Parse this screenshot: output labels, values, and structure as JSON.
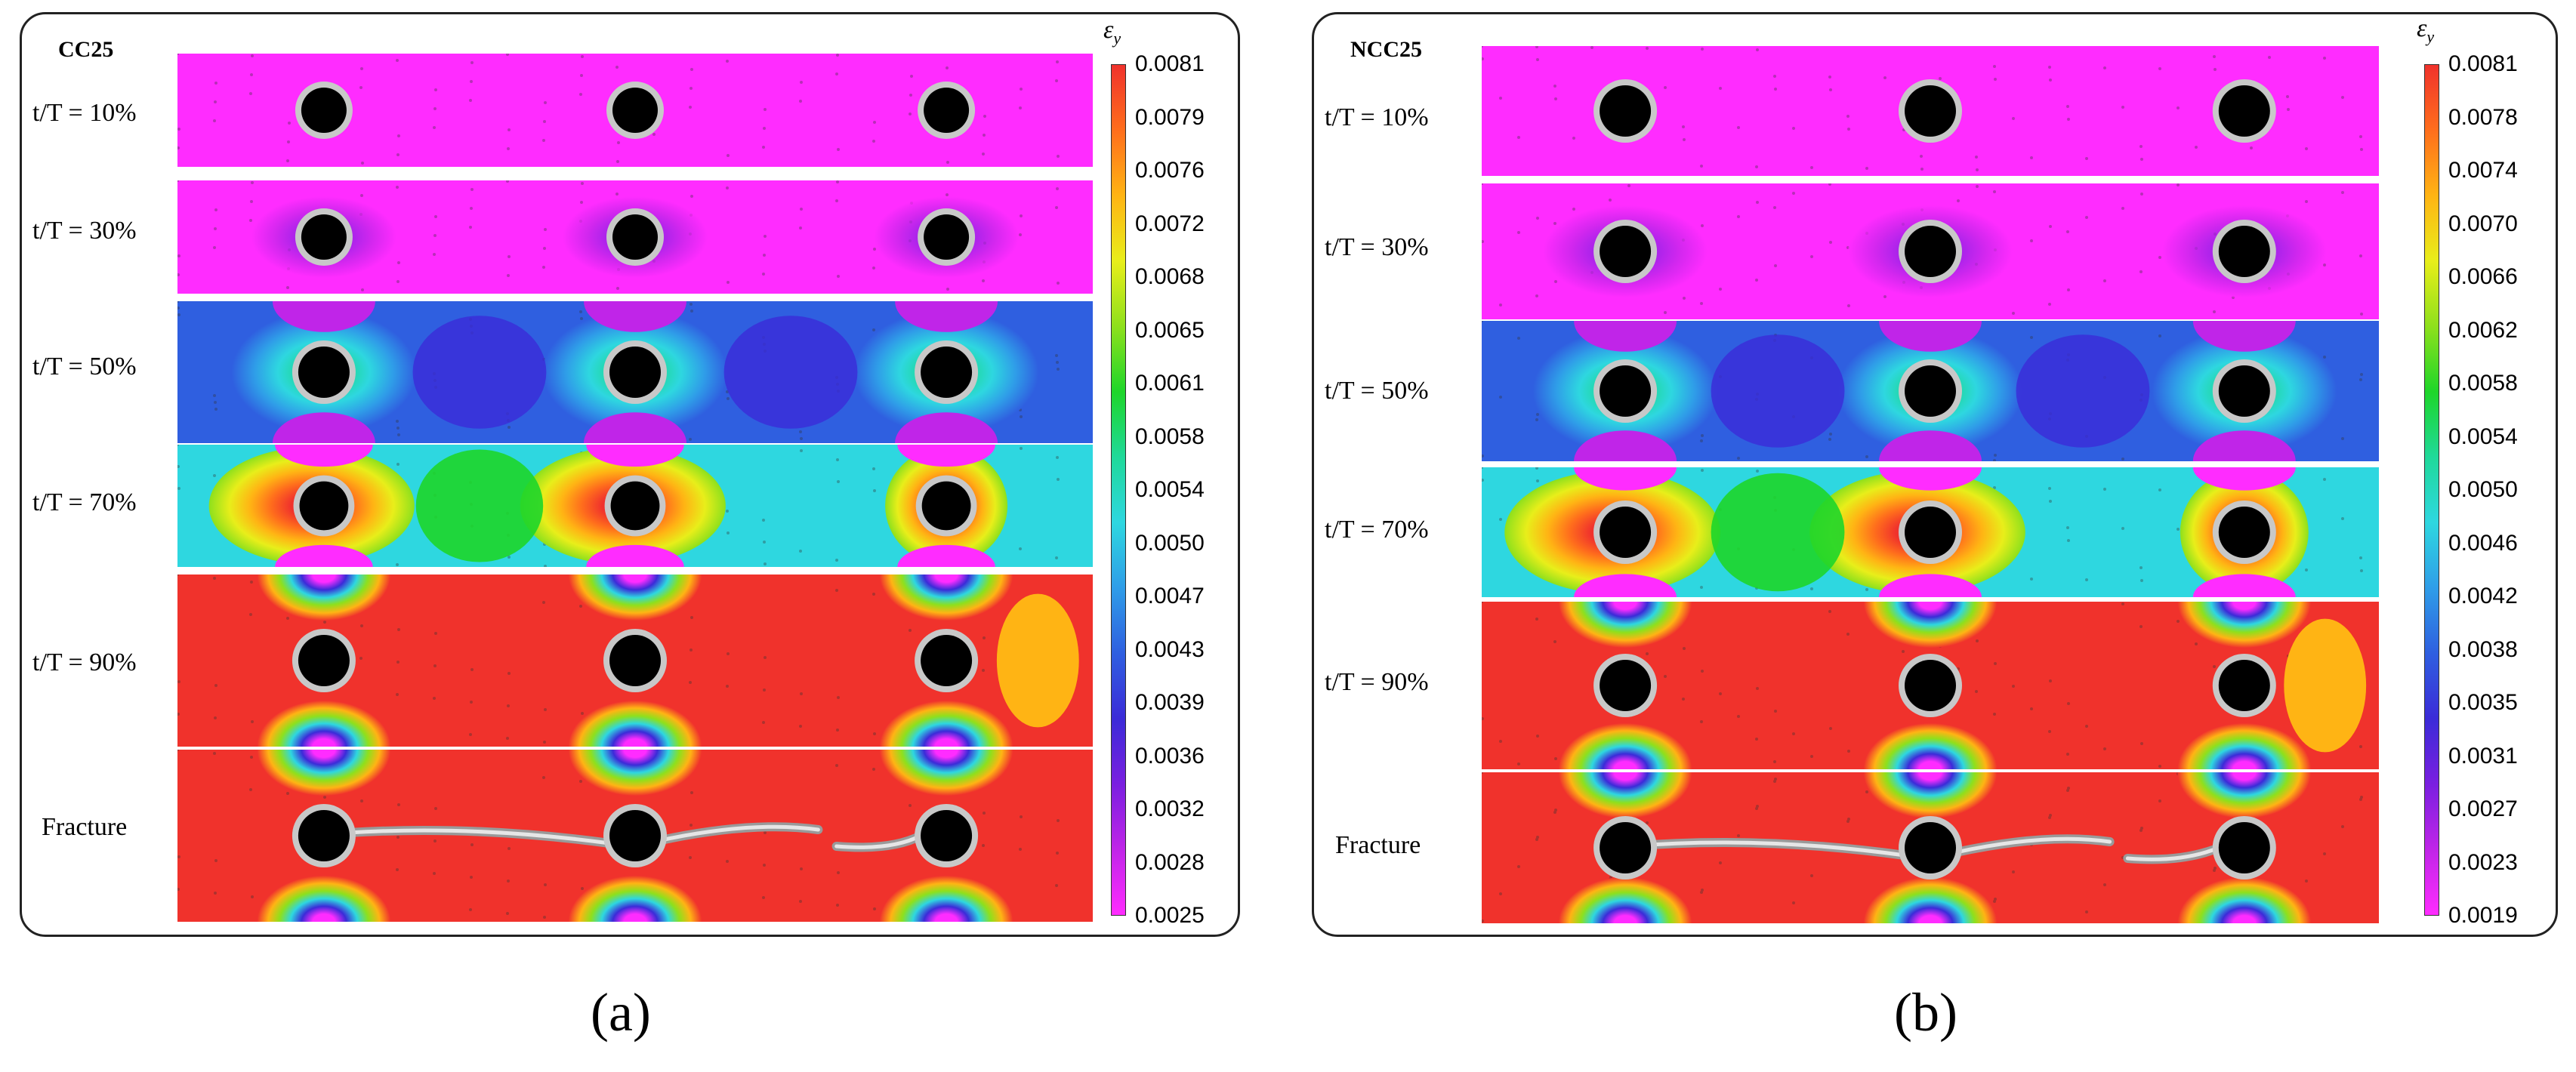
{
  "colors": {
    "scale": [
      "#ff2cff",
      "#c025e8",
      "#7a1fe0",
      "#3b2bd8",
      "#2f5fe0",
      "#2f9de8",
      "#2ed7e0",
      "#1fd99a",
      "#1ed62a",
      "#8ee01c",
      "#e8ee1a",
      "#ffb414",
      "#ff6e1c",
      "#f0322c"
    ],
    "hole": "#000000",
    "speckle": "#c8c8c8"
  },
  "panels": [
    {
      "id": "a",
      "title": "CC25",
      "caption": "(a)",
      "colorbar_title": "ε",
      "colorbar_sub": "y",
      "colorbar_ticks": [
        "0.0081",
        "0.0079",
        "0.0076",
        "0.0072",
        "0.0068",
        "0.0065",
        "0.0061",
        "0.0058",
        "0.0054",
        "0.0050",
        "0.0047",
        "0.0043",
        "0.0039",
        "0.0036",
        "0.0032",
        "0.0028",
        "0.0025"
      ],
      "rows": [
        {
          "label": "t/T = 10%",
          "stage": "10"
        },
        {
          "label": "t/T = 30%",
          "stage": "30"
        },
        {
          "label": "t/T = 50%",
          "stage": "50"
        },
        {
          "label": "t/T = 70%",
          "stage": "70"
        },
        {
          "label": "t/T = 90%",
          "stage": "90"
        },
        {
          "label": "Fracture",
          "stage": "fracture"
        }
      ]
    },
    {
      "id": "b",
      "title": "NCC25",
      "caption": "(b)",
      "colorbar_title": "ε",
      "colorbar_sub": "y",
      "colorbar_ticks": [
        "0.0081",
        "0.0078",
        "0.0074",
        "0.0070",
        "0.0066",
        "0.0062",
        "0.0058",
        "0.0054",
        "0.0050",
        "0.0046",
        "0.0042",
        "0.0038",
        "0.0035",
        "0.0031",
        "0.0027",
        "0.0023",
        "0.0019"
      ],
      "rows": [
        {
          "label": "t/T = 10%",
          "stage": "10"
        },
        {
          "label": "t/T = 30%",
          "stage": "30"
        },
        {
          "label": "t/T = 50%",
          "stage": "50"
        },
        {
          "label": "t/T = 70%",
          "stage": "70"
        },
        {
          "label": "t/T = 90%",
          "stage": "90"
        },
        {
          "label": "Fracture",
          "stage": "fracture"
        }
      ]
    }
  ]
}
